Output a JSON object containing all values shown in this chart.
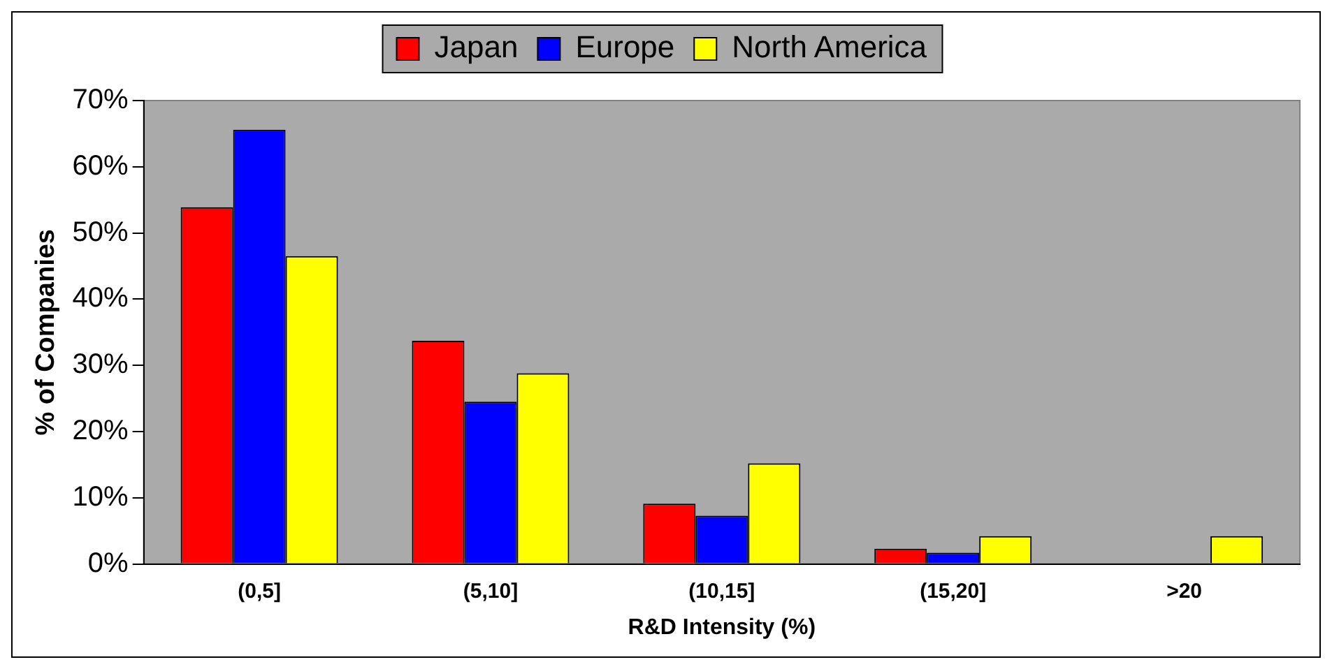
{
  "chart_data": {
    "type": "bar",
    "xlabel": "R&D Intensity (%)",
    "ylabel": "% of Companies",
    "categories": [
      "(0,5]",
      "(5,10]",
      "(10,15]",
      "(15,20]",
      ">20"
    ],
    "series": [
      {
        "name": "Japan",
        "color": "#ff0000",
        "values": [
          53.9,
          33.7,
          9.1,
          2.3,
          0
        ]
      },
      {
        "name": "Europe",
        "color": "#0000ff",
        "values": [
          65.6,
          24.5,
          7.3,
          1.7,
          0
        ]
      },
      {
        "name": "North America",
        "color": "#ffff00",
        "values": [
          46.5,
          28.8,
          15.2,
          4.2,
          4.2
        ]
      }
    ],
    "ylim": [
      0,
      70
    ],
    "yticks": [
      {
        "value": 0,
        "label": "0%"
      },
      {
        "value": 10,
        "label": "10%"
      },
      {
        "value": 20,
        "label": "20%"
      },
      {
        "value": 30,
        "label": "30%"
      },
      {
        "value": 40,
        "label": "40%"
      },
      {
        "value": 50,
        "label": "50%"
      },
      {
        "value": 60,
        "label": "60%"
      },
      {
        "value": 70,
        "label": "70%"
      }
    ],
    "grid": false,
    "legend": "top"
  }
}
